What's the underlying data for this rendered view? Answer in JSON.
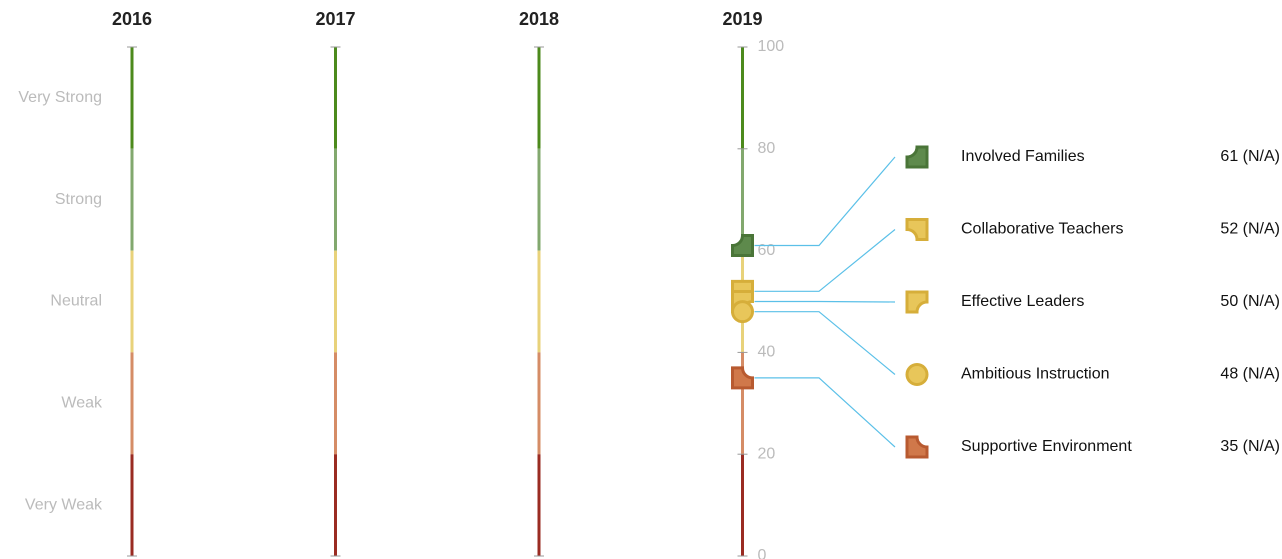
{
  "chart_data": {
    "type": "strip",
    "categories": [
      "2016",
      "2017",
      "2018",
      "2019"
    ],
    "ylim": [
      0,
      100
    ],
    "yticks": [
      0,
      20,
      40,
      60,
      80,
      100
    ],
    "bands": [
      {
        "label": "Very Strong",
        "range": [
          80,
          100
        ],
        "color": "#4c8a1c"
      },
      {
        "label": "Strong",
        "range": [
          60,
          80
        ],
        "color": "#82a86e"
      },
      {
        "label": "Neutral",
        "range": [
          40,
          60
        ],
        "color": "#e8d27a"
      },
      {
        "label": "Weak",
        "range": [
          20,
          40
        ],
        "color": "#d58c66"
      },
      {
        "label": "Very Weak",
        "range": [
          0,
          20
        ],
        "color": "#9a2b22"
      }
    ],
    "series": [
      {
        "name": "Involved Families",
        "color": "#5e8a4c",
        "stroke": "#4a7538",
        "shape": "notch-tl",
        "values": [
          null,
          null,
          null,
          61
        ],
        "value_labels": [
          null,
          null,
          null,
          "61 (N/A)"
        ]
      },
      {
        "name": "Collaborative Teachers",
        "color": "#e8c65a",
        "stroke": "#d6ae3a",
        "shape": "notch-bl",
        "values": [
          null,
          null,
          null,
          52
        ],
        "value_labels": [
          null,
          null,
          null,
          "52 (N/A)"
        ]
      },
      {
        "name": "Effective Leaders",
        "color": "#e8c65a",
        "stroke": "#d6ae3a",
        "shape": "notch-br",
        "values": [
          null,
          null,
          null,
          50
        ],
        "value_labels": [
          null,
          null,
          null,
          "50 (N/A)"
        ]
      },
      {
        "name": "Ambitious Instruction",
        "color": "#e8c65a",
        "stroke": "#d6ae3a",
        "shape": "circle",
        "values": [
          null,
          null,
          null,
          48
        ],
        "value_labels": [
          null,
          null,
          null,
          "48 (N/A)"
        ]
      },
      {
        "name": "Supportive Environment",
        "color": "#d0784a",
        "stroke": "#b85a30",
        "shape": "notch-tr",
        "values": [
          null,
          null,
          null,
          35
        ],
        "value_labels": [
          null,
          null,
          null,
          "35 (N/A)"
        ]
      }
    ],
    "connector_color": "#5bc0e8"
  }
}
